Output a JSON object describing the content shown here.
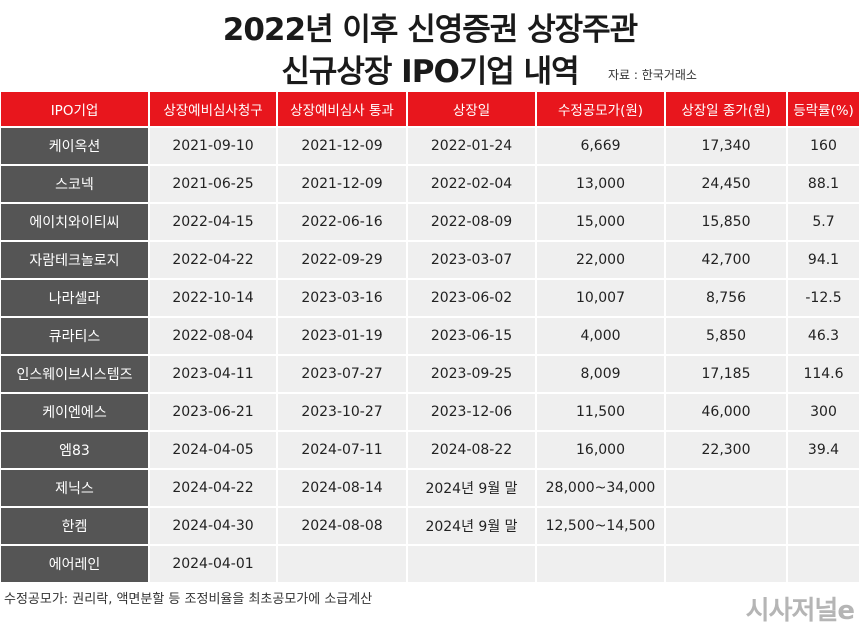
{
  "header": {
    "title_line1": "2022년 이후 신영증권 상장주관",
    "title_line2": "신규상장 IPO기업 내역",
    "source": "자료 : 한국거래소"
  },
  "table": {
    "columns": [
      "IPO기업",
      "상장예비심사청구",
      "상장예비심사 통과",
      "상장일",
      "수정공모가(원)",
      "상장일 종가(원)",
      "등락률(%)"
    ],
    "rows": [
      [
        "케이옥션",
        "2021-09-10",
        "2021-12-09",
        "2022-01-24",
        "6,669",
        "17,340",
        "160"
      ],
      [
        "스코넥",
        "2021-06-25",
        "2021-12-09",
        "2022-02-04",
        "13,000",
        "24,450",
        "88.1"
      ],
      [
        "에이치와이티씨",
        "2022-04-15",
        "2022-06-16",
        "2022-08-09",
        "15,000",
        "15,850",
        "5.7"
      ],
      [
        "자람테크놀로지",
        "2022-04-22",
        "2022-09-29",
        "2023-03-07",
        "22,000",
        "42,700",
        "94.1"
      ],
      [
        "나라셀라",
        "2022-10-14",
        "2023-03-16",
        "2023-06-02",
        "10,007",
        "8,756",
        "-12.5"
      ],
      [
        "큐라티스",
        "2022-08-04",
        "2023-01-19",
        "2023-06-15",
        "4,000",
        "5,850",
        "46.3"
      ],
      [
        "인스웨이브시스템즈",
        "2023-04-11",
        "2023-07-27",
        "2023-09-25",
        "8,009",
        "17,185",
        "114.6"
      ],
      [
        "케이엔에스",
        "2023-06-21",
        "2023-10-27",
        "2023-12-06",
        "11,500",
        "46,000",
        "300"
      ],
      [
        "엠83",
        "2024-04-05",
        "2024-07-11",
        "2024-08-22",
        "16,000",
        "22,300",
        "39.4"
      ],
      [
        "제닉스",
        "2024-04-22",
        "2024-08-14",
        "2024년 9월 말",
        "28,000~34,000",
        null,
        null
      ],
      [
        "한켐",
        "2024-04-30",
        "2024-08-08",
        "2024년 9월 말",
        "12,500~14,500",
        null,
        null
      ],
      [
        "에어레인",
        "2024-04-01",
        null,
        null,
        null,
        null,
        null
      ]
    ]
  },
  "footer": {
    "note": "수정공모가: 권리락, 액면분할 등 조정비율을 최초공모가에 소급계산",
    "logo": "시사저널e"
  }
}
